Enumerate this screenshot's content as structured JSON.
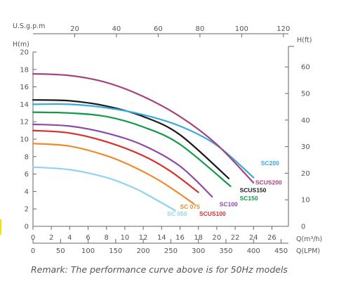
{
  "chart_data": {
    "type": "line",
    "title": "",
    "axes": {
      "q_m3h": {
        "label": "Q(m³/h)",
        "range": [
          0,
          27
        ],
        "ticks": [
          0,
          2,
          4,
          6,
          8,
          10,
          12,
          14,
          16,
          18,
          20,
          22,
          24,
          26
        ]
      },
      "q_lpm": {
        "label": "Q(LPM)",
        "ticks": [
          0,
          50,
          100,
          150,
          200,
          250,
          300,
          350,
          400,
          450
        ]
      },
      "q_usgpm": {
        "label": "U.S.g.p.m",
        "ticks": [
          20,
          40,
          60,
          80,
          100,
          120
        ]
      },
      "h_m": {
        "label": "H(m)",
        "range": [
          0,
          20
        ],
        "ticks": [
          0,
          2,
          4,
          6,
          8,
          10,
          12,
          14,
          16,
          18,
          20
        ]
      },
      "h_ft": {
        "label": "H(ft)",
        "ticks": [
          0,
          10,
          20,
          30,
          40,
          50,
          60
        ]
      }
    },
    "grid": false,
    "series": [
      {
        "name": "SC 050",
        "color": "#8fd3f0",
        "x": [
          0,
          4,
          8,
          11,
          13,
          15.5
        ],
        "y": [
          6.8,
          6.5,
          5.6,
          4.4,
          3.3,
          1.8
        ]
      },
      {
        "name": "SC 075",
        "color": "#f08a2e",
        "x": [
          0,
          4,
          8,
          11,
          14,
          17.5
        ],
        "y": [
          9.5,
          9.2,
          8.1,
          6.8,
          5.1,
          2.6
        ]
      },
      {
        "name": "SCUS100",
        "color": "#d9302a",
        "x": [
          0,
          4,
          8,
          12,
          15,
          18
        ],
        "y": [
          11.0,
          10.7,
          9.7,
          8.1,
          6.3,
          3.9
        ]
      },
      {
        "name": "SC100",
        "color": "#8b49a8",
        "x": [
          0,
          4,
          8,
          12,
          16,
          19.5
        ],
        "y": [
          11.7,
          11.5,
          10.7,
          9.3,
          6.9,
          3.4
        ]
      },
      {
        "name": "SC150",
        "color": "#129a47",
        "x": [
          0,
          4,
          8,
          12,
          16,
          21.5
        ],
        "y": [
          13.1,
          13.0,
          12.6,
          11.4,
          9.4,
          4.6
        ]
      },
      {
        "name": "SCUS150",
        "color": "#1a1a1a",
        "x": [
          0,
          4,
          8,
          12,
          16,
          21.3
        ],
        "y": [
          14.5,
          14.4,
          13.8,
          12.6,
          10.5,
          5.5
        ]
      },
      {
        "name": "SC200",
        "color": "#39a9dc",
        "x": [
          0,
          4,
          8,
          12,
          16,
          20,
          24
        ],
        "y": [
          14.0,
          14.0,
          13.6,
          12.8,
          11.5,
          9.3,
          5.6
        ]
      },
      {
        "name": "SCUS200",
        "color": "#a8437e",
        "x": [
          0,
          4,
          8,
          12,
          16,
          20,
          24
        ],
        "y": [
          17.5,
          17.3,
          16.5,
          14.9,
          12.6,
          9.4,
          5.0
        ]
      }
    ],
    "labels": [
      {
        "series": "SC200",
        "text": "SC200",
        "x": 24.8,
        "y": 7.0
      },
      {
        "series": "SCUS200",
        "text": "SCUS200",
        "x": 24.2,
        "y": 4.8
      },
      {
        "series": "SCUS150",
        "text": "SCUS150",
        "x": 22.5,
        "y": 3.9
      },
      {
        "series": "SC150",
        "text": "SC150",
        "x": 22.5,
        "y": 3.0
      },
      {
        "series": "SC100",
        "text": "SC100",
        "x": 20.3,
        "y": 2.3
      },
      {
        "series": "SC 075",
        "text": "SC 075",
        "x": 16.0,
        "y": 2.0
      },
      {
        "series": "SCUS100",
        "text": "SCUS100",
        "x": 18.1,
        "y": 1.2
      },
      {
        "series": "SC 050",
        "text": "SC 050",
        "x": 14.6,
        "y": 1.2
      }
    ]
  },
  "remark": "Remark: The performance curve above is for 50Hz models"
}
